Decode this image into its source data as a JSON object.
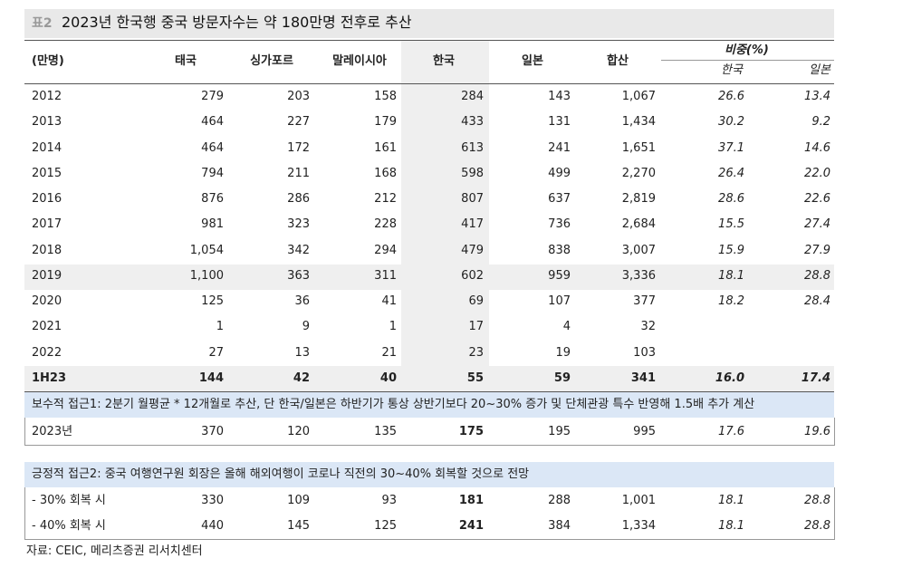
{
  "title": {
    "label": "표2",
    "text": "2023년 한국행 중국 방문자수는 약 180만명 전후로 추산"
  },
  "header": {
    "unit": "(만명)",
    "columns": [
      "태국",
      "싱가포르",
      "말레이시아",
      "한국",
      "일본",
      "합산"
    ],
    "share": "비중(%)",
    "share_columns": [
      "한국",
      "일본"
    ]
  },
  "table": {
    "rows": [
      [
        "2012",
        "279",
        "203",
        "158",
        "284",
        "143",
        "1,067",
        "26.6",
        "13.4"
      ],
      [
        "2013",
        "464",
        "227",
        "179",
        "433",
        "131",
        "1,434",
        "30.2",
        "9.2"
      ],
      [
        "2014",
        "464",
        "172",
        "161",
        "613",
        "241",
        "1,651",
        "37.1",
        "14.6"
      ],
      [
        "2015",
        "794",
        "211",
        "168",
        "598",
        "499",
        "2,270",
        "26.4",
        "22.0"
      ],
      [
        "2016",
        "876",
        "286",
        "212",
        "807",
        "637",
        "2,819",
        "28.6",
        "22.6"
      ],
      [
        "2017",
        "981",
        "323",
        "228",
        "417",
        "736",
        "2,684",
        "15.5",
        "27.4"
      ],
      [
        "2018",
        "1,054",
        "342",
        "294",
        "479",
        "838",
        "3,007",
        "15.9",
        "27.9"
      ],
      [
        "2019",
        "1,100",
        "363",
        "311",
        "602",
        "959",
        "3,336",
        "18.1",
        "28.8"
      ],
      [
        "2020",
        "125",
        "36",
        "41",
        "69",
        "107",
        "377",
        "18.2",
        "28.4"
      ],
      [
        "2021",
        "1",
        "9",
        "1",
        "17",
        "4",
        "32"
      ],
      [
        "2022",
        "27",
        "13",
        "21",
        "23",
        "19",
        "103"
      ],
      [
        "1H23",
        "144",
        "42",
        "40",
        "55",
        "59",
        "341",
        "16.0",
        "17.4"
      ]
    ]
  },
  "scenario1": {
    "note": "보수적 접근1: 2분기 월평균 * 12개월로 추산, 단 한국/일본은 하반기가 통상 상반기보다 20~30% 증가 및 단체관광 특수 반영해 1.5배 추가 계산",
    "rows": [
      [
        "2023년",
        "370",
        "120",
        "135",
        "175",
        "195",
        "995",
        "17.6",
        "19.6"
      ]
    ]
  },
  "scenario2": {
    "note": "긍정적 접근2: 중국 여행연구원 회장은 올해 해외여행이 코로나 직전의 30~40% 회복할 것으로 전망",
    "rows": [
      [
        "- 30% 회복 시",
        "330",
        "109",
        "93",
        "181",
        "288",
        "1,001",
        "18.1",
        "28.8"
      ],
      [
        "- 40% 회복 시",
        "440",
        "145",
        "125",
        "241",
        "384",
        "1,334",
        "18.1",
        "28.8"
      ]
    ]
  },
  "source": "자료: CEIC, 메리츠증권 리서치센터"
}
